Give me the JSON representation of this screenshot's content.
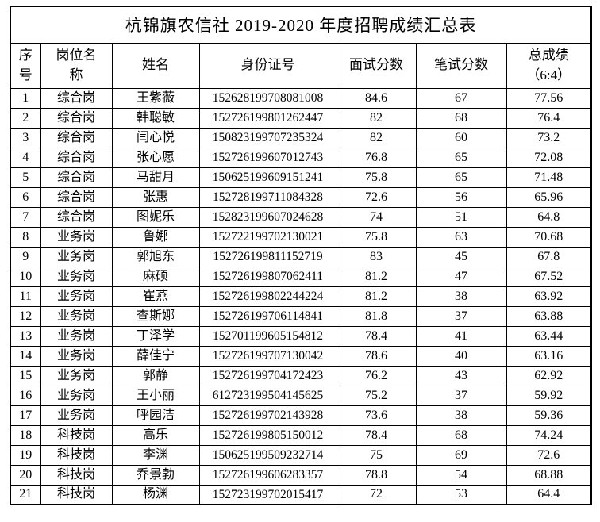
{
  "title": "杭锦旗农信社 2019-2020 年度招聘成绩汇总表",
  "colors": {
    "border": "#000000",
    "text": "#000000",
    "background": "#ffffff"
  },
  "table": {
    "headers": [
      {
        "key": "seq",
        "label": "序\n号"
      },
      {
        "key": "position",
        "label": "岗位名\n称"
      },
      {
        "key": "name",
        "label": "姓名"
      },
      {
        "key": "id",
        "label": "身份证号"
      },
      {
        "key": "interview",
        "label": "面试分数"
      },
      {
        "key": "written",
        "label": "笔试分数"
      },
      {
        "key": "total",
        "label": "总成绩\n（6:4）"
      }
    ],
    "rows": [
      {
        "seq": "1",
        "position": "综合岗",
        "name": "王紫薇",
        "id": "152628199708081008",
        "interview": "84.6",
        "written": "67",
        "total": "77.56"
      },
      {
        "seq": "2",
        "position": "综合岗",
        "name": "韩聪敏",
        "id": "152726199801262447",
        "interview": "82",
        "written": "68",
        "total": "76.4"
      },
      {
        "seq": "3",
        "position": "综合岗",
        "name": "闫心悦",
        "id": "150823199707235324",
        "interview": "82",
        "written": "60",
        "total": "73.2"
      },
      {
        "seq": "4",
        "position": "综合岗",
        "name": "张心愿",
        "id": "152726199607012743",
        "interview": "76.8",
        "written": "65",
        "total": "72.08"
      },
      {
        "seq": "5",
        "position": "综合岗",
        "name": "马甜月",
        "id": "150625199609151241",
        "interview": "75.8",
        "written": "65",
        "total": "71.48"
      },
      {
        "seq": "6",
        "position": "综合岗",
        "name": "张惠",
        "id": "152728199711084328",
        "interview": "72.6",
        "written": "56",
        "total": "65.96"
      },
      {
        "seq": "7",
        "position": "综合岗",
        "name": "图妮乐",
        "id": "152823199607024628",
        "interview": "74",
        "written": "51",
        "total": "64.8"
      },
      {
        "seq": "8",
        "position": "业务岗",
        "name": "鲁娜",
        "id": "152722199702130021",
        "interview": "75.8",
        "written": "63",
        "total": "70.68"
      },
      {
        "seq": "9",
        "position": "业务岗",
        "name": "郭旭东",
        "id": "152726199811152719",
        "interview": "83",
        "written": "45",
        "total": "67.8"
      },
      {
        "seq": "10",
        "position": "业务岗",
        "name": "麻硕",
        "id": "152726199807062411",
        "interview": "81.2",
        "written": "47",
        "total": "67.52"
      },
      {
        "seq": "11",
        "position": "业务岗",
        "name": "崔燕",
        "id": "152726199802244224",
        "interview": "81.2",
        "written": "38",
        "total": "63.92"
      },
      {
        "seq": "12",
        "position": "业务岗",
        "name": "查斯娜",
        "id": "152726199706114841",
        "interview": "81.8",
        "written": "37",
        "total": "63.88"
      },
      {
        "seq": "13",
        "position": "业务岗",
        "name": "丁泽学",
        "id": "152701199605154812",
        "interview": "78.4",
        "written": "41",
        "total": "63.44"
      },
      {
        "seq": "14",
        "position": "业务岗",
        "name": "薛佳宁",
        "id": "152726199707130042",
        "interview": "78.6",
        "written": "40",
        "total": "63.16"
      },
      {
        "seq": "15",
        "position": "业务岗",
        "name": "郭静",
        "id": "152726199704172423",
        "interview": "76.2",
        "written": "43",
        "total": "62.92"
      },
      {
        "seq": "16",
        "position": "业务岗",
        "name": "王小丽",
        "id": "612723199504145625",
        "interview": "75.2",
        "written": "37",
        "total": "59.92"
      },
      {
        "seq": "17",
        "position": "业务岗",
        "name": "呼园洁",
        "id": "152726199702143928",
        "interview": "73.6",
        "written": "38",
        "total": "59.36"
      },
      {
        "seq": "18",
        "position": "科技岗",
        "name": "高乐",
        "id": "152726199805150012",
        "interview": "78.4",
        "written": "68",
        "total": "74.24"
      },
      {
        "seq": "19",
        "position": "科技岗",
        "name": "李渊",
        "id": "150625199509232714",
        "interview": "75",
        "written": "69",
        "total": "72.6"
      },
      {
        "seq": "20",
        "position": "科技岗",
        "name": "乔景勃",
        "id": "152726199606283357",
        "interview": "78.8",
        "written": "54",
        "total": "68.88"
      },
      {
        "seq": "21",
        "position": "科技岗",
        "name": "杨渊",
        "id": "152723199702015417",
        "interview": "72",
        "written": "53",
        "total": "64.4"
      }
    ]
  }
}
